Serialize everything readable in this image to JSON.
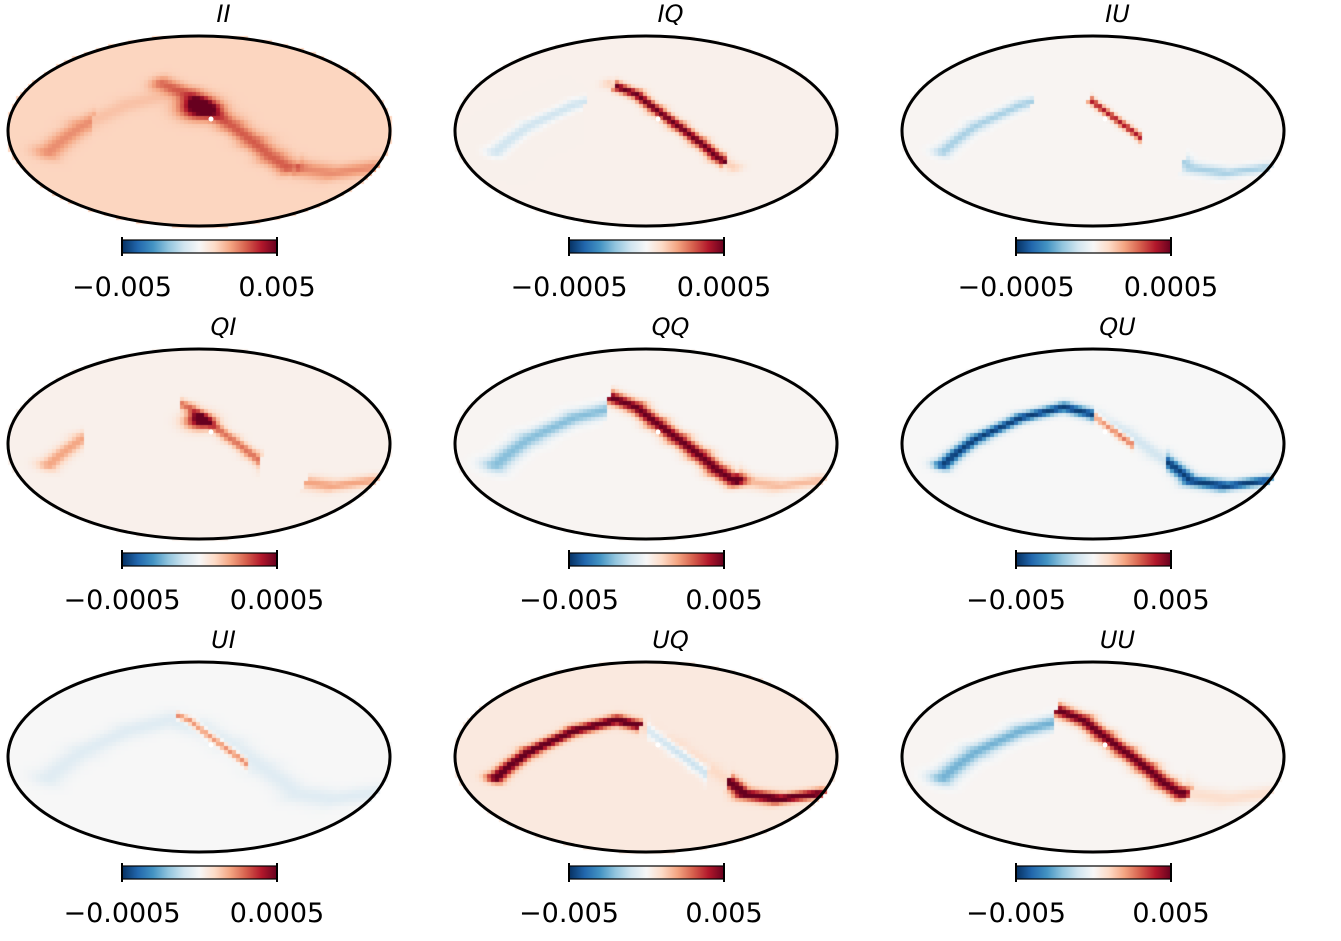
{
  "figure": {
    "colormap": "RdBu_r",
    "colors": {
      "outline": "#000000",
      "background": "#ffffff",
      "hole": "#ffffff"
    }
  },
  "chart_data": [
    {
      "type": "heatmap",
      "projection": "mollweide",
      "title": "II",
      "colorbar": {
        "min": -0.005,
        "max": 0.005,
        "tick_labels": [
          "−0.005",
          "0.005"
        ]
      }
    },
    {
      "type": "heatmap",
      "projection": "mollweide",
      "title": "IQ",
      "colorbar": {
        "min": -0.0005,
        "max": 0.0005,
        "tick_labels": [
          "−0.0005",
          "0.0005"
        ]
      }
    },
    {
      "type": "heatmap",
      "projection": "mollweide",
      "title": "IU",
      "colorbar": {
        "min": -0.0005,
        "max": 0.0005,
        "tick_labels": [
          "−0.0005",
          "0.0005"
        ]
      }
    },
    {
      "type": "heatmap",
      "projection": "mollweide",
      "title": "QI",
      "colorbar": {
        "min": -0.0005,
        "max": 0.0005,
        "tick_labels": [
          "−0.0005",
          "0.0005"
        ]
      }
    },
    {
      "type": "heatmap",
      "projection": "mollweide",
      "title": "QQ",
      "colorbar": {
        "min": -0.005,
        "max": 0.005,
        "tick_labels": [
          "−0.005",
          "0.005"
        ]
      }
    },
    {
      "type": "heatmap",
      "projection": "mollweide",
      "title": "QU",
      "colorbar": {
        "min": -0.005,
        "max": 0.005,
        "tick_labels": [
          "−0.005",
          "0.005"
        ]
      }
    },
    {
      "type": "heatmap",
      "projection": "mollweide",
      "title": "UI",
      "colorbar": {
        "min": -0.0005,
        "max": 0.0005,
        "tick_labels": [
          "−0.0005",
          "0.0005"
        ]
      }
    },
    {
      "type": "heatmap",
      "projection": "mollweide",
      "title": "UQ",
      "colorbar": {
        "min": -0.005,
        "max": 0.005,
        "tick_labels": [
          "−0.005",
          "0.005"
        ]
      }
    },
    {
      "type": "heatmap",
      "projection": "mollweide",
      "title": "UU",
      "colorbar": {
        "min": -0.005,
        "max": 0.005,
        "tick_labels": [
          "−0.005",
          "0.005"
        ]
      }
    }
  ]
}
